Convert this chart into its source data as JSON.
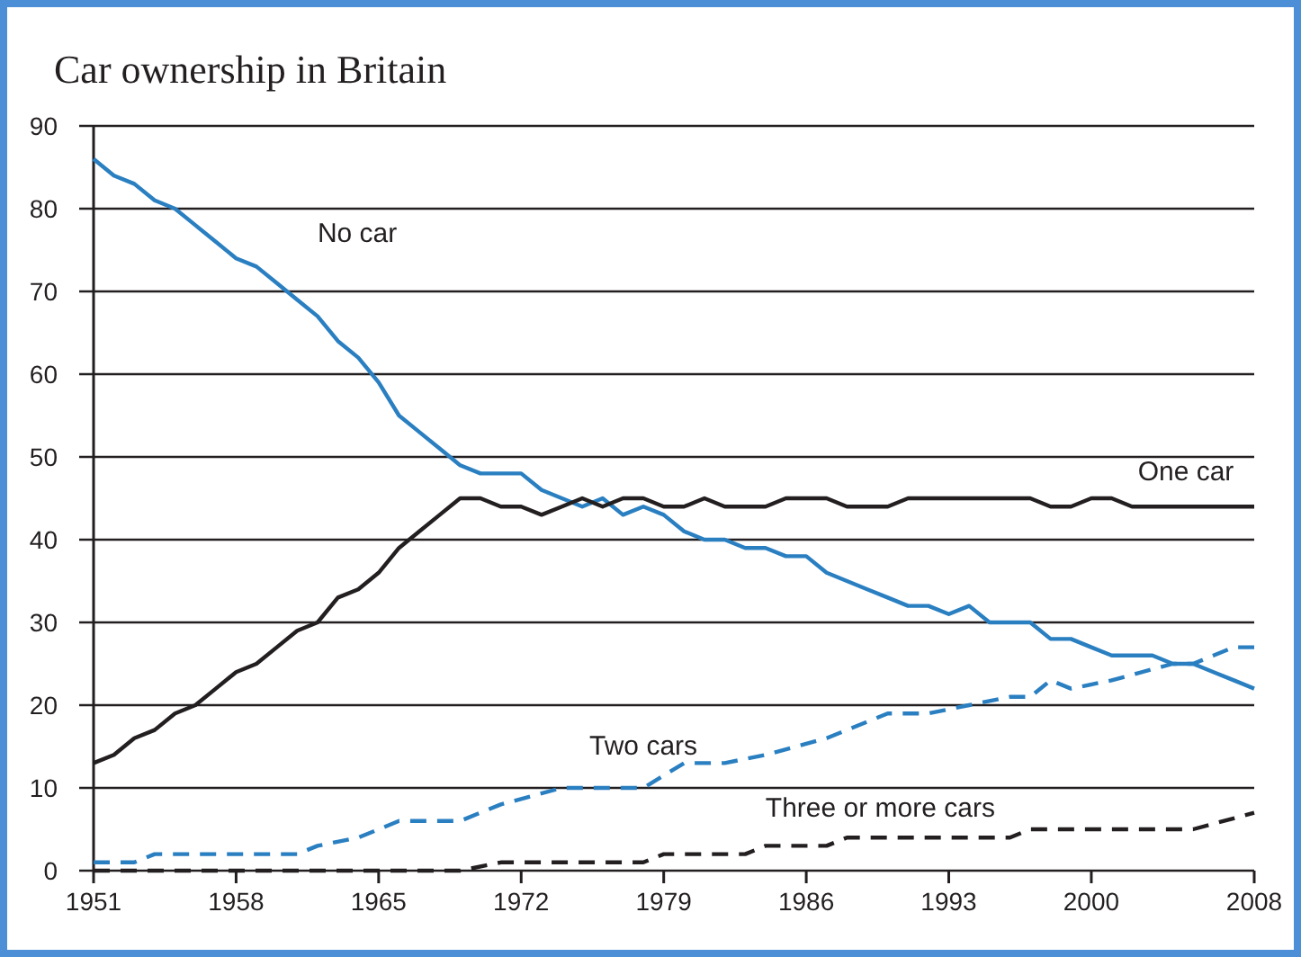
{
  "chart_data": {
    "type": "line",
    "title": "Car ownership in Britain",
    "grid": "y",
    "xlim": [
      1951,
      2008
    ],
    "xticks": [
      1951,
      1958,
      1965,
      1972,
      1979,
      1986,
      1993,
      2000,
      2008
    ],
    "ylim": [
      0,
      90
    ],
    "yticks": [
      0,
      10,
      20,
      30,
      40,
      50,
      60,
      70,
      80,
      90
    ],
    "marker": "none",
    "series": [
      {
        "name": "No car",
        "color": "#2a7fc1",
        "line_style": "solid",
        "x": [
          1951,
          1952,
          1953,
          1954,
          1955,
          1956,
          1957,
          1958,
          1959,
          1960,
          1961,
          1962,
          1963,
          1964,
          1965,
          1966,
          1967,
          1968,
          1969,
          1970,
          1971,
          1972,
          1973,
          1974,
          1975,
          1976,
          1977,
          1978,
          1979,
          1980,
          1981,
          1982,
          1983,
          1984,
          1985,
          1986,
          1987,
          1988,
          1989,
          1990,
          1991,
          1992,
          1993,
          1994,
          1995,
          1996,
          1997,
          1998,
          1999,
          2000,
          2001,
          2002,
          2003,
          2004,
          2005,
          2006,
          2007,
          2008
        ],
        "values": [
          86,
          84,
          83,
          81,
          80,
          78,
          76,
          74,
          73,
          71,
          69,
          67,
          64,
          62,
          59,
          55,
          53,
          51,
          49,
          48,
          48,
          48,
          46,
          45,
          44,
          45,
          43,
          44,
          43,
          41,
          40,
          40,
          39,
          39,
          38,
          38,
          36,
          35,
          34,
          33,
          32,
          32,
          31,
          32,
          30,
          30,
          30,
          28,
          28,
          27,
          26,
          26,
          26,
          25,
          25,
          24,
          23,
          22
        ]
      },
      {
        "name": "One car",
        "color": "#231f20",
        "line_style": "solid",
        "x": [
          1951,
          1952,
          1953,
          1954,
          1955,
          1956,
          1957,
          1958,
          1959,
          1960,
          1961,
          1962,
          1963,
          1964,
          1965,
          1966,
          1967,
          1968,
          1969,
          1970,
          1971,
          1972,
          1973,
          1974,
          1975,
          1976,
          1977,
          1978,
          1979,
          1980,
          1981,
          1982,
          1983,
          1984,
          1985,
          1986,
          1987,
          1988,
          1989,
          1990,
          1991,
          1992,
          1993,
          1994,
          1995,
          1996,
          1997,
          1998,
          1999,
          2000,
          2001,
          2002,
          2003,
          2004,
          2005,
          2006,
          2007,
          2008
        ],
        "values": [
          13,
          14,
          16,
          17,
          19,
          20,
          22,
          24,
          25,
          27,
          29,
          30,
          33,
          34,
          36,
          39,
          41,
          43,
          45,
          45,
          44,
          44,
          43,
          44,
          45,
          44,
          45,
          45,
          44,
          44,
          45,
          44,
          44,
          44,
          45,
          45,
          45,
          44,
          44,
          44,
          45,
          45,
          45,
          45,
          45,
          45,
          45,
          44,
          44,
          45,
          45,
          44,
          44,
          44,
          44,
          44,
          44,
          44
        ]
      },
      {
        "name": "Two cars",
        "color": "#2a7fc1",
        "line_style": "dashed",
        "x": [
          1951,
          1953,
          1954,
          1961,
          1962,
          1964,
          1966,
          1969,
          1971,
          1974,
          1978,
          1980,
          1982,
          1984,
          1987,
          1990,
          1992,
          1994,
          1996,
          1997,
          1998,
          1999,
          2001,
          2004,
          2005,
          2006,
          2007,
          2008
        ],
        "values": [
          1,
          1,
          2,
          2,
          3,
          4,
          6,
          6,
          8,
          10,
          10,
          13,
          13,
          14,
          16,
          19,
          19,
          20,
          21,
          21,
          23,
          22,
          23,
          25,
          25,
          26,
          27,
          27
        ]
      },
      {
        "name": "Three or more cars",
        "color": "#231f20",
        "line_style": "dashed",
        "x": [
          1951,
          1969,
          1971,
          1978,
          1979,
          1983,
          1984,
          1987,
          1988,
          1996,
          1997,
          2005,
          2008
        ],
        "values": [
          0,
          0,
          1,
          1,
          2,
          2,
          3,
          3,
          4,
          4,
          5,
          5,
          7
        ]
      }
    ]
  }
}
